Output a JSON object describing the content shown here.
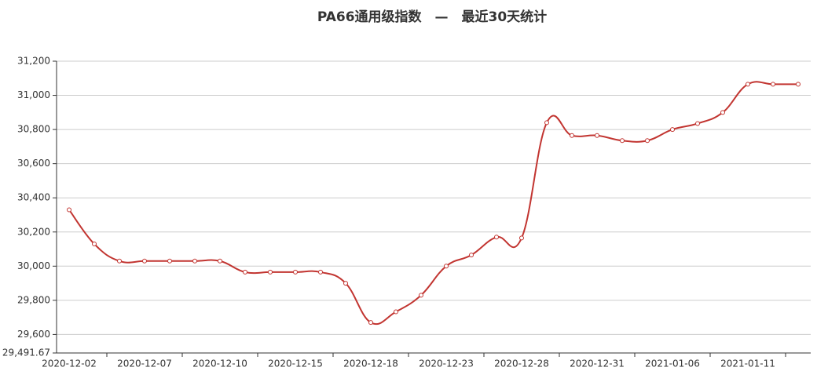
{
  "chart_data": {
    "type": "line",
    "title": "PA66通用级指数　—　最近30天统计",
    "categories": [
      "2020-12-02",
      null,
      null,
      "2020-12-07",
      null,
      null,
      "2020-12-10",
      null,
      null,
      "2020-12-15",
      null,
      null,
      "2020-12-18",
      null,
      null,
      "2020-12-23",
      null,
      null,
      "2020-12-28",
      null,
      null,
      "2020-12-31",
      null,
      null,
      "2021-01-06",
      null,
      null,
      "2021-01-11",
      null,
      null
    ],
    "series": [
      {
        "name": "PA66通用级指数",
        "color": "#c23531",
        "values": [
          30330,
          30130,
          30030,
          30030,
          30030,
          30030,
          30030,
          29965,
          29965,
          29965,
          29965,
          29900,
          29670,
          29733,
          29830,
          30000,
          30065,
          30170,
          30165,
          30840,
          30765,
          30765,
          30735,
          30735,
          30800,
          30835,
          30900,
          31065,
          31065,
          31065
        ]
      }
    ],
    "ylim": [
      29491.67,
      31200
    ],
    "yticks": [
      {
        "value": 29491.67,
        "label": "29,491.67"
      },
      {
        "value": 29600,
        "label": "29,600"
      },
      {
        "value": 29800,
        "label": "29,800"
      },
      {
        "value": 30000,
        "label": "30,000"
      },
      {
        "value": 30200,
        "label": "30,200"
      },
      {
        "value": 30400,
        "label": "30,400"
      },
      {
        "value": 30600,
        "label": "30,600"
      },
      {
        "value": 30800,
        "label": "30,800"
      },
      {
        "value": 31000,
        "label": "31,000"
      },
      {
        "value": 31200,
        "label": "31,200"
      }
    ],
    "grid": true
  }
}
